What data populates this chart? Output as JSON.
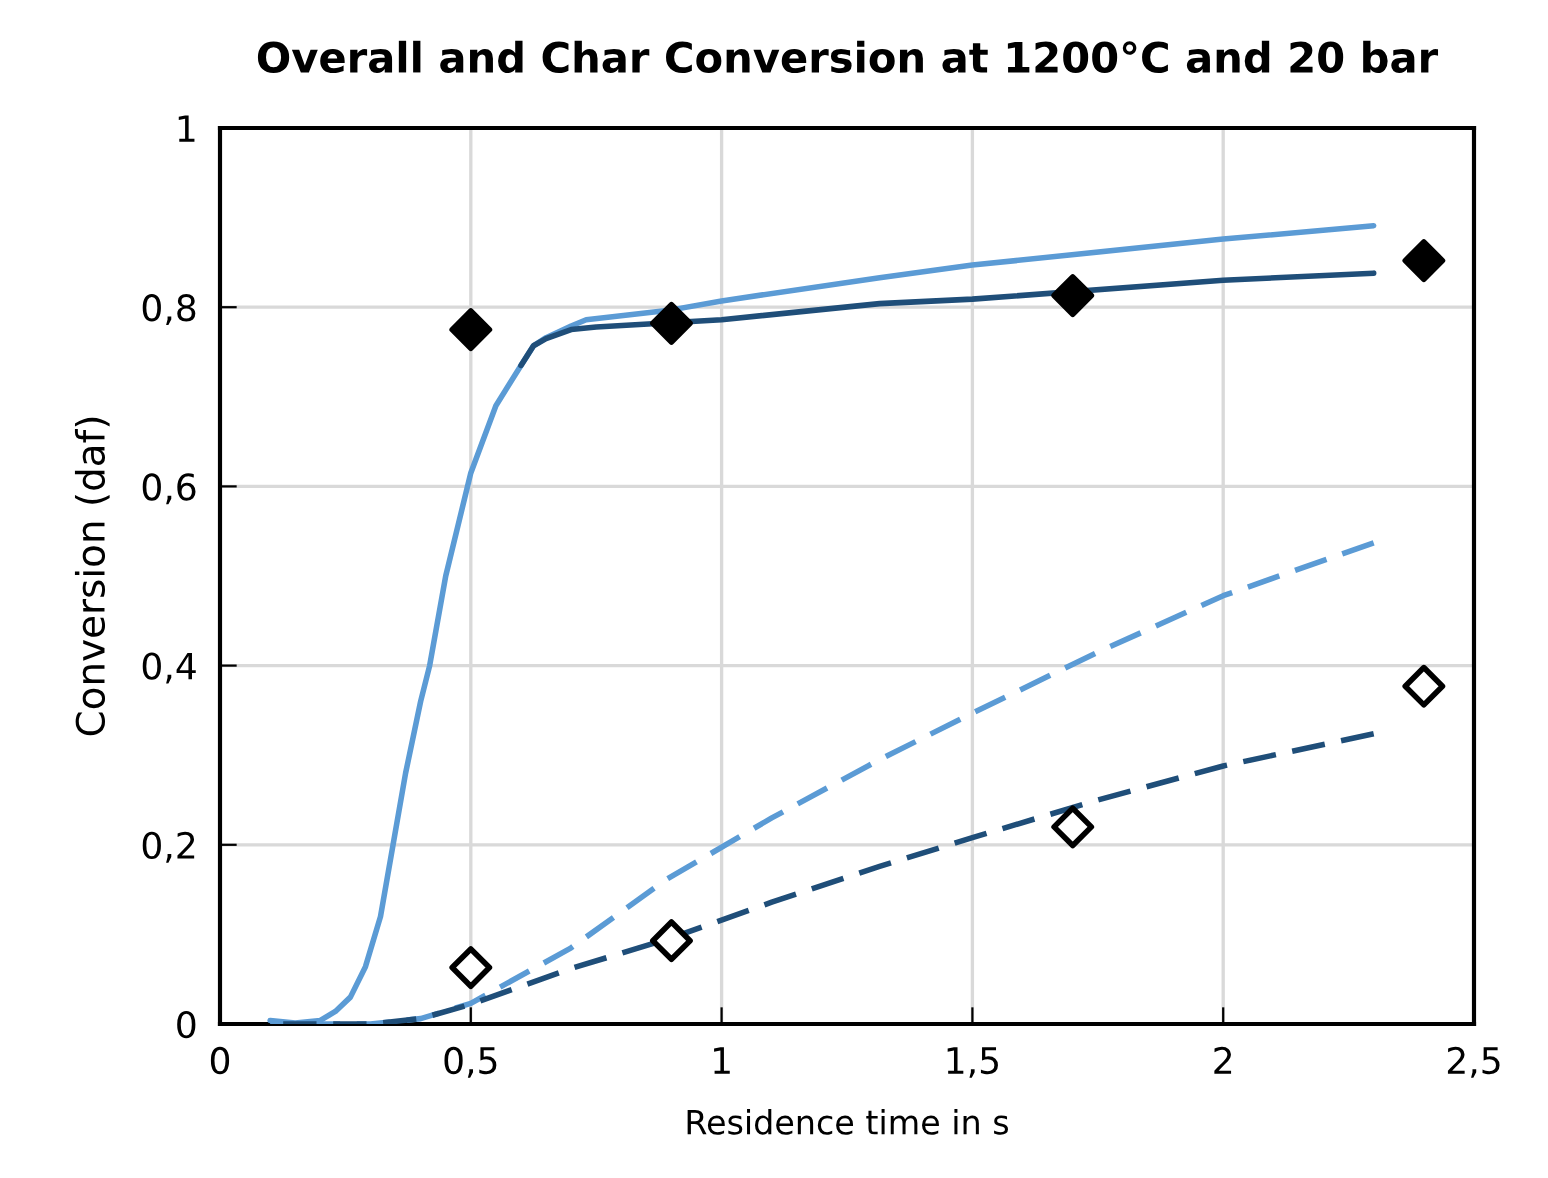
{
  "chart_data": {
    "type": "line",
    "title": "Overall and Char Conversion at 1200°C and 20 bar",
    "xlabel": "Residence time in s",
    "ylabel": "Conversion (daf)",
    "xlim": [
      0,
      2.5
    ],
    "ylim": [
      0,
      1
    ],
    "xticks": [
      0,
      {
        "value": 0.5,
        "label": "0,5"
      },
      1,
      {
        "value": 1.5,
        "label": "1,5"
      },
      2,
      {
        "value": 2.5,
        "label": "2,5"
      }
    ],
    "yticks": [
      0,
      {
        "value": 0.2,
        "label": "0,2"
      },
      {
        "value": 0.4,
        "label": "0,4"
      },
      {
        "value": 0.6,
        "label": "0,6"
      },
      {
        "value": 0.8,
        "label": "0,8"
      },
      1
    ],
    "grid": true,
    "legend": false,
    "series": [
      {
        "color": "#5b9bd5",
        "line_style": "solid",
        "marker": "none",
        "x": [
          0.1,
          0.15,
          0.2,
          0.23,
          0.26,
          0.29,
          0.32,
          0.345,
          0.37,
          0.4,
          0.418,
          0.45,
          0.5,
          0.55,
          0.6,
          0.625,
          0.65,
          0.7,
          0.73,
          0.9,
          1.0,
          1.315,
          1.5,
          2.0,
          2.3
        ],
        "values": [
          0.004,
          0.001,
          0.004,
          0.014,
          0.03,
          0.064,
          0.12,
          0.2,
          0.28,
          0.36,
          0.4,
          0.5,
          0.615,
          0.69,
          0.735,
          0.757,
          0.766,
          0.779,
          0.786,
          0.797,
          0.807,
          0.833,
          0.847,
          0.876,
          0.891
        ]
      },
      {
        "color": "#1f4e79",
        "line_style": "solid",
        "marker": "none",
        "x": [
          0.6,
          0.625,
          0.65,
          0.7,
          0.75,
          1.0,
          1.315,
          1.5,
          2.0,
          2.3
        ],
        "values": [
          0.735,
          0.757,
          0.765,
          0.775,
          0.778,
          0.786,
          0.804,
          0.809,
          0.83,
          0.838
        ]
      },
      {
        "color": "#5b9bd5",
        "line_style": "dashed",
        "marker": "none",
        "x": [
          0.1,
          0.2,
          0.3,
          0.4,
          0.5,
          0.7,
          0.889,
          1.1,
          1.315,
          1.5,
          1.75,
          2.0,
          2.3
        ],
        "values": [
          0.0,
          0.0,
          0.0,
          0.006,
          0.023,
          0.085,
          0.161,
          0.23,
          0.295,
          0.347,
          0.415,
          0.478,
          0.537
        ]
      },
      {
        "color": "#1f4e79",
        "line_style": "dashed",
        "marker": "none",
        "x": [
          0.1,
          0.2,
          0.3,
          0.4,
          0.5,
          0.7,
          0.9,
          1.1,
          1.315,
          1.5,
          1.75,
          2.0,
          2.3
        ],
        "values": [
          0.0,
          0.0,
          0.0,
          0.006,
          0.022,
          0.062,
          0.096,
          0.136,
          0.176,
          0.208,
          0.25,
          0.288,
          0.324
        ]
      },
      {
        "type": "scatter",
        "color": "#000000",
        "marker": "diamond",
        "x": [
          0.5,
          0.9,
          1.7,
          2.4
        ],
        "values": [
          0.775,
          0.782,
          0.813,
          0.852
        ]
      },
      {
        "type": "scatter",
        "color": "#ffffff",
        "marker": "diamond",
        "x": [
          0.5,
          0.9,
          1.7,
          2.4
        ],
        "values": [
          0.063,
          0.093,
          0.22,
          0.377
        ]
      }
    ]
  }
}
